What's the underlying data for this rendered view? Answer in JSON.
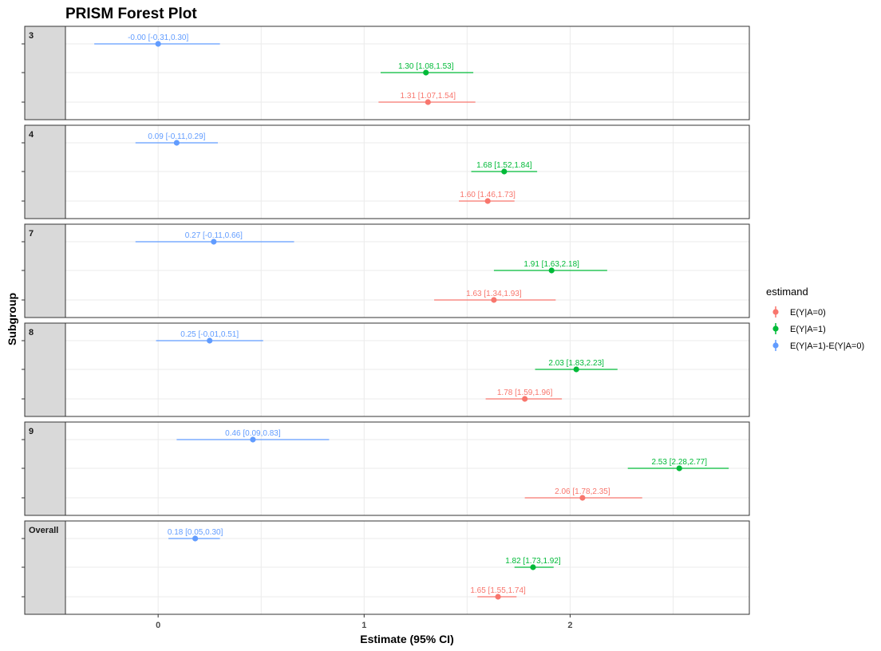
{
  "chart_data": {
    "type": "forest",
    "title": "PRISM Forest Plot",
    "xlabel": "Estimate (95% CI)",
    "ylabel": "Subgroup",
    "xlim": [
      -0.45,
      2.87
    ],
    "x_ticks": [
      0,
      1,
      2
    ],
    "x_tick_labels": [
      "0",
      "1",
      "2"
    ],
    "grid": true,
    "legend": {
      "title": "estimand",
      "position": "right",
      "entries": [
        {
          "key": "a0",
          "label": "E(Y|A=0)",
          "color": "#F8766D"
        },
        {
          "key": "a1",
          "label": "E(Y|A=1)",
          "color": "#00BA38"
        },
        {
          "key": "diff",
          "label": "E(Y|A=1)-E(Y|A=0)",
          "color": "#619CFF"
        }
      ]
    },
    "panels": [
      {
        "subgroup": "3",
        "rows": [
          {
            "estimand": "diff",
            "est": -0.0,
            "lo": -0.31,
            "hi": 0.3,
            "label": "-0.00 [-0.31,0.30]"
          },
          {
            "estimand": "a1",
            "est": 1.3,
            "lo": 1.08,
            "hi": 1.53,
            "label": "1.30 [1.08,1.53]"
          },
          {
            "estimand": "a0",
            "est": 1.31,
            "lo": 1.07,
            "hi": 1.54,
            "label": "1.31 [1.07,1.54]"
          }
        ]
      },
      {
        "subgroup": "4",
        "rows": [
          {
            "estimand": "diff",
            "est": 0.09,
            "lo": -0.11,
            "hi": 0.29,
            "label": "0.09 [-0.11,0.29]"
          },
          {
            "estimand": "a1",
            "est": 1.68,
            "lo": 1.52,
            "hi": 1.84,
            "label": "1.68 [1.52,1.84]"
          },
          {
            "estimand": "a0",
            "est": 1.6,
            "lo": 1.46,
            "hi": 1.73,
            "label": "1.60 [1.46,1.73]"
          }
        ]
      },
      {
        "subgroup": "7",
        "rows": [
          {
            "estimand": "diff",
            "est": 0.27,
            "lo": -0.11,
            "hi": 0.66,
            "label": "0.27 [-0.11,0.66]"
          },
          {
            "estimand": "a1",
            "est": 1.91,
            "lo": 1.63,
            "hi": 2.18,
            "label": "1.91 [1.63,2.18]"
          },
          {
            "estimand": "a0",
            "est": 1.63,
            "lo": 1.34,
            "hi": 1.93,
            "label": "1.63 [1.34,1.93]"
          }
        ]
      },
      {
        "subgroup": "8",
        "rows": [
          {
            "estimand": "diff",
            "est": 0.25,
            "lo": -0.01,
            "hi": 0.51,
            "label": "0.25 [-0.01,0.51]"
          },
          {
            "estimand": "a1",
            "est": 2.03,
            "lo": 1.83,
            "hi": 2.23,
            "label": "2.03 [1.83,2.23]"
          },
          {
            "estimand": "a0",
            "est": 1.78,
            "lo": 1.59,
            "hi": 1.96,
            "label": "1.78 [1.59,1.96]"
          }
        ]
      },
      {
        "subgroup": "9",
        "rows": [
          {
            "estimand": "diff",
            "est": 0.46,
            "lo": 0.09,
            "hi": 0.83,
            "label": "0.46 [0.09,0.83]"
          },
          {
            "estimand": "a1",
            "est": 2.53,
            "lo": 2.28,
            "hi": 2.77,
            "label": "2.53 [2.28,2.77]"
          },
          {
            "estimand": "a0",
            "est": 2.06,
            "lo": 1.78,
            "hi": 2.35,
            "label": "2.06 [1.78,2.35]"
          }
        ]
      },
      {
        "subgroup": "Overall",
        "rows": [
          {
            "estimand": "diff",
            "est": 0.18,
            "lo": 0.05,
            "hi": 0.3,
            "label": "0.18 [0.05,0.30]"
          },
          {
            "estimand": "a1",
            "est": 1.82,
            "lo": 1.73,
            "hi": 1.92,
            "label": "1.82 [1.73,1.92]"
          },
          {
            "estimand": "a0",
            "est": 1.65,
            "lo": 1.55,
            "hi": 1.74,
            "label": "1.65 [1.55,1.74]"
          }
        ]
      }
    ]
  }
}
